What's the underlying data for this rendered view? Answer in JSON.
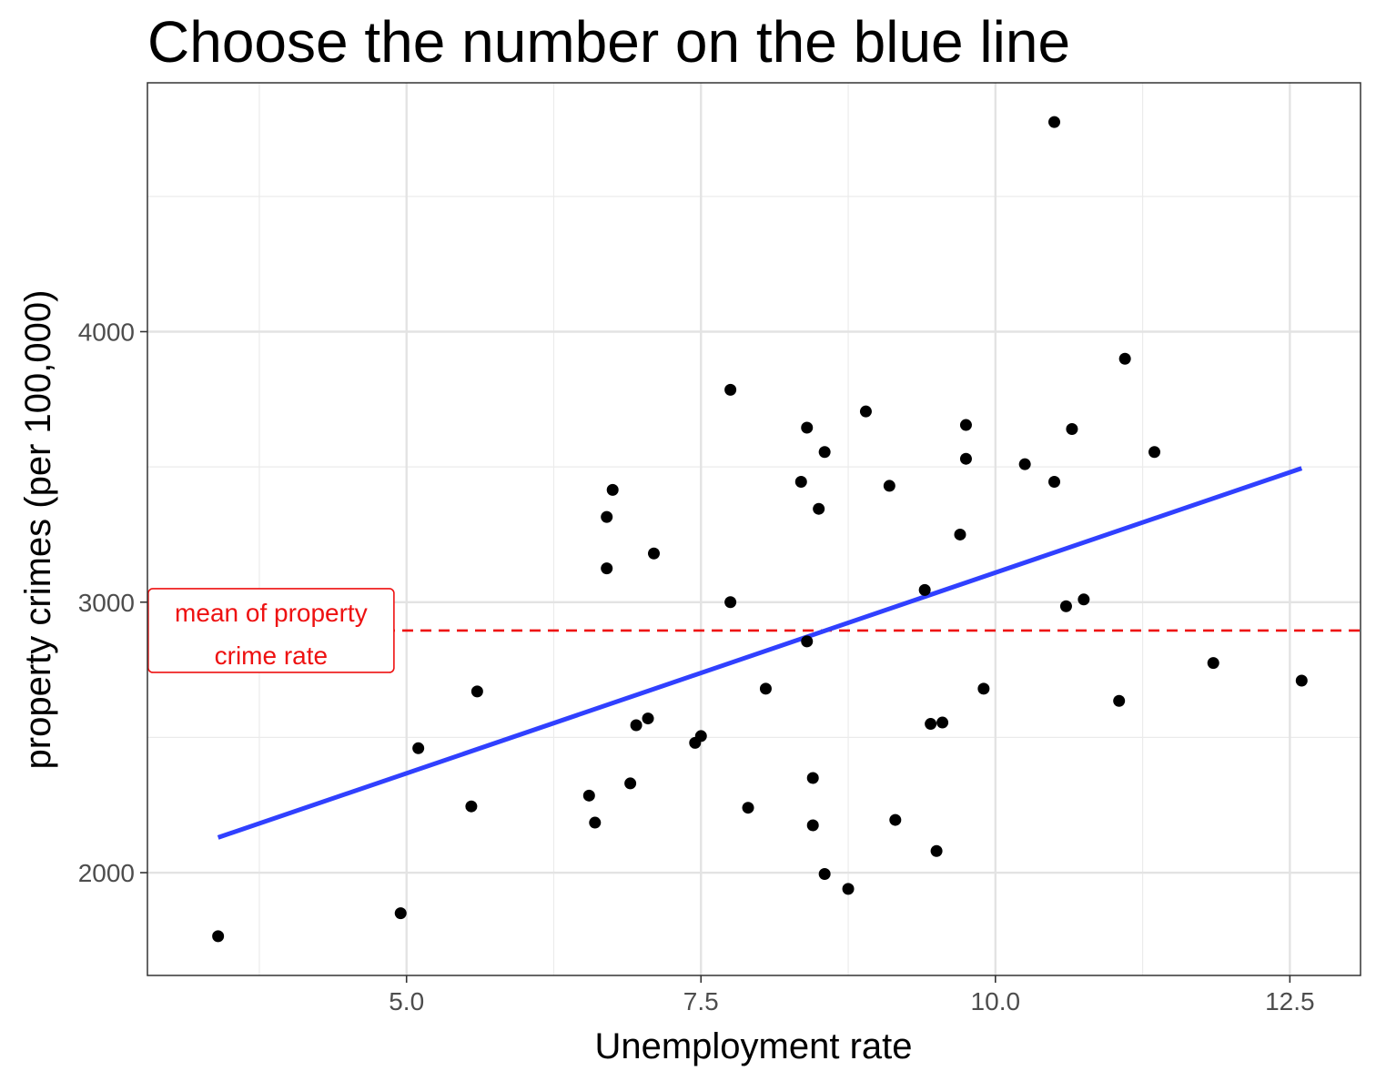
{
  "chart_data": {
    "type": "scatter",
    "title": "Choose the number on the blue line",
    "xlabel": "Unemployment rate",
    "ylabel": "property crimes (per 100,000)",
    "xlim": [
      2.8,
      13.1
    ],
    "ylim": [
      1620,
      4920
    ],
    "x_ticks": [
      5.0,
      7.5,
      10.0,
      12.5
    ],
    "x_tick_labels": [
      "5.0",
      "7.5",
      "10.0",
      "12.5"
    ],
    "x_minor_ticks": [
      3.75,
      6.25,
      8.75,
      11.25
    ],
    "y_ticks": [
      2000,
      3000,
      4000
    ],
    "y_tick_labels": [
      "2000",
      "3000",
      "4000"
    ],
    "y_minor_ticks": [
      2500,
      3500,
      4500
    ],
    "grid": true,
    "theme": "bw",
    "points_color": "#000000",
    "points": [
      [
        3.4,
        1765
      ],
      [
        4.95,
        1850
      ],
      [
        5.1,
        2460
      ],
      [
        5.55,
        2245
      ],
      [
        5.6,
        2670
      ],
      [
        6.55,
        2285
      ],
      [
        6.6,
        2185
      ],
      [
        6.7,
        3125
      ],
      [
        6.7,
        3315
      ],
      [
        6.75,
        3415
      ],
      [
        6.9,
        2330
      ],
      [
        6.95,
        2545
      ],
      [
        7.05,
        2570
      ],
      [
        7.1,
        3180
      ],
      [
        7.45,
        2480
      ],
      [
        7.5,
        2505
      ],
      [
        7.75,
        3785
      ],
      [
        7.75,
        3000
      ],
      [
        7.9,
        2240
      ],
      [
        8.05,
        2680
      ],
      [
        8.35,
        3445
      ],
      [
        8.4,
        3645
      ],
      [
        8.4,
        2855
      ],
      [
        8.45,
        2350
      ],
      [
        8.45,
        2175
      ],
      [
        8.5,
        3345
      ],
      [
        8.55,
        3555
      ],
      [
        8.55,
        1995
      ],
      [
        8.75,
        1940
      ],
      [
        8.9,
        3705
      ],
      [
        9.1,
        3430
      ],
      [
        9.15,
        2195
      ],
      [
        9.4,
        3045
      ],
      [
        9.45,
        2550
      ],
      [
        9.5,
        2080
      ],
      [
        9.55,
        2555
      ],
      [
        9.7,
        3250
      ],
      [
        9.75,
        3655
      ],
      [
        9.75,
        3530
      ],
      [
        9.9,
        2680
      ],
      [
        10.25,
        3510
      ],
      [
        10.5,
        3445
      ],
      [
        10.5,
        4775
      ],
      [
        10.6,
        2985
      ],
      [
        10.65,
        3640
      ],
      [
        10.75,
        3010
      ],
      [
        11.05,
        2635
      ],
      [
        11.1,
        3900
      ],
      [
        11.35,
        3555
      ],
      [
        11.85,
        2775
      ],
      [
        12.6,
        2710
      ]
    ],
    "regression_line": {
      "color": "#3040ff",
      "x": [
        3.4,
        12.6
      ],
      "y": [
        2130,
        3495
      ]
    },
    "mean_line": {
      "color": "#ee1111",
      "y": 2895,
      "style": "dashed"
    },
    "annotation": {
      "lines": [
        "mean of property",
        "crime rate"
      ],
      "color": "#ee1111",
      "x": 3.85,
      "y": 2895
    }
  }
}
